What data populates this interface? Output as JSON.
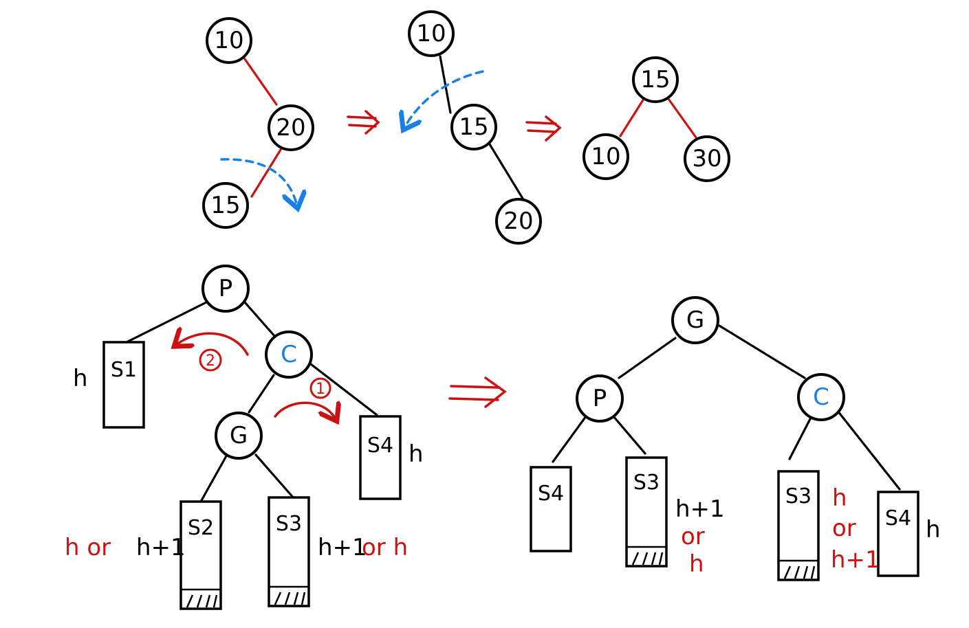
{
  "colors": {
    "black": "#000000",
    "red": "#cc1111",
    "blue": "#1a7fe6"
  },
  "top": {
    "step1": {
      "n10": "10",
      "n20": "20",
      "n15": "15"
    },
    "step2": {
      "n10": "10",
      "n15": "15",
      "n20": "20"
    },
    "step3": {
      "n15": "15",
      "n10": "10",
      "n30": "30"
    }
  },
  "left_tree": {
    "P": "P",
    "C": "C",
    "G": "G",
    "S1": "S1",
    "S2": "S2",
    "S3": "S3",
    "S4": "S4",
    "step_1": "1",
    "step_2": "2",
    "h_s1": "h",
    "h_s4": "h",
    "s2_label_red": "h or",
    "s2_label_black": "h+1",
    "s3_label_black": "h+1",
    "s3_label_red": "or h"
  },
  "right_tree": {
    "G": "G",
    "P": "P",
    "C": "C",
    "S4a": "S4",
    "S3a": "S3",
    "S3b": "S3",
    "S4b": "S4",
    "s3a_l1": "h+1",
    "s3a_l2": "or",
    "s3a_l3": "h",
    "s3b_l1": "h",
    "s3b_l2": "or",
    "s3b_l3": "h+1",
    "h_s4b": "h"
  }
}
